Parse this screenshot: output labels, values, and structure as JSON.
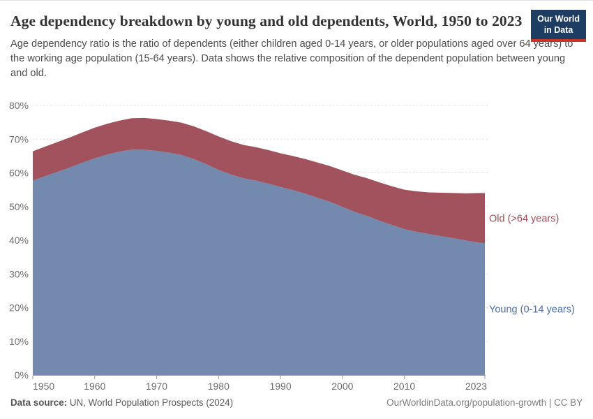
{
  "header": {
    "title": "Age dependency breakdown by young and old dependents, World, 1950 to 2023",
    "subtitle": "Age dependency ratio is the ratio of dependents (either children aged 0-14 years, or older populations aged over 64 years) to the working age population (15-64 years). Data shows the relative composition of the dependent population between young and old.",
    "logo_line1": "Our World",
    "logo_line2": "in Data",
    "logo_bg": "#1d3d63",
    "logo_accent": "#cc3227"
  },
  "chart_data": {
    "type": "area",
    "stacked": true,
    "title": "Age dependency breakdown by young and old dependents, World, 1950 to 2023",
    "xlabel": "",
    "ylabel": "",
    "x_range": [
      1950,
      2023
    ],
    "y_range": [
      0,
      80
    ],
    "y_tick_suffix": "%",
    "grid": "horizontal-dashed",
    "legend_position": "right-edge-labels",
    "x_ticks": [
      1950,
      1960,
      1970,
      1980,
      1990,
      2000,
      2010,
      2023
    ],
    "y_ticks": [
      0,
      10,
      20,
      30,
      40,
      50,
      60,
      70,
      80
    ],
    "x": [
      1950,
      1952,
      1954,
      1956,
      1958,
      1960,
      1962,
      1964,
      1966,
      1968,
      1970,
      1972,
      1974,
      1976,
      1978,
      1980,
      1982,
      1984,
      1986,
      1988,
      1990,
      1992,
      1994,
      1996,
      1998,
      2000,
      2002,
      2004,
      2006,
      2008,
      2010,
      2012,
      2014,
      2016,
      2018,
      2020,
      2022,
      2023
    ],
    "series": [
      {
        "id": "young",
        "name": "Young (0-14 years)",
        "color": "#7389ae",
        "label_color": "#4d6fa4",
        "values": [
          57.7,
          59.0,
          60.3,
          61.6,
          63.0,
          64.3,
          65.4,
          66.3,
          66.9,
          66.9,
          66.5,
          66.0,
          65.3,
          64.1,
          62.6,
          60.9,
          59.5,
          58.4,
          57.7,
          56.8,
          55.8,
          54.9,
          53.8,
          52.6,
          51.4,
          49.9,
          48.4,
          47.2,
          45.8,
          44.5,
          43.3,
          42.5,
          41.8,
          41.2,
          40.6,
          39.9,
          39.3,
          39.1
        ]
      },
      {
        "id": "old",
        "name": "Old (>64 years)",
        "color": "#a1525c",
        "label_color": "#9b4e57",
        "values": [
          8.7,
          8.8,
          8.85,
          8.9,
          9.0,
          9.1,
          9.15,
          9.2,
          9.3,
          9.4,
          9.45,
          9.5,
          9.6,
          9.7,
          9.8,
          9.9,
          9.9,
          9.9,
          9.9,
          10.0,
          10.0,
          10.1,
          10.3,
          10.45,
          10.6,
          10.8,
          11.0,
          11.2,
          11.35,
          11.5,
          11.7,
          12.0,
          12.4,
          12.9,
          13.4,
          14.0,
          14.7,
          14.9
        ]
      }
    ]
  },
  "footer": {
    "source_label": "Data source:",
    "source_text": " UN, World Population Prospects (2024)",
    "credit": "OurWorldinData.org/population-growth | CC BY"
  }
}
